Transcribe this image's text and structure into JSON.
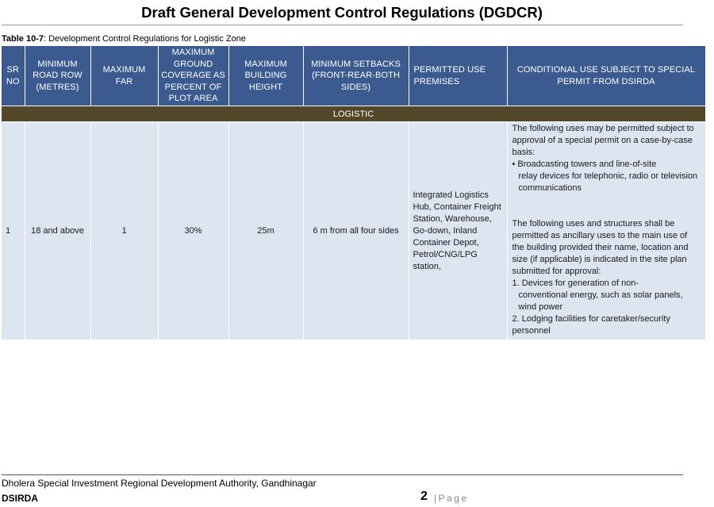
{
  "document": {
    "title": "Draft General Development Control Regulations (DGDCR)",
    "caption_label": "Table 10-7",
    "caption_text": ": Development Control Regulations for Logistic Zone"
  },
  "table": {
    "headers": {
      "sr_no": "SR NO",
      "road_row": "MINIMUM ROAD ROW (METRES)",
      "far": "MAXIMUM FAR",
      "ground_coverage": "MAXIMUM GROUND COVERAGE AS PERCENT OF PLOT AREA",
      "building_height": "MAXIMUM BUILDING HEIGHT",
      "setbacks": "MINIMUM SETBACKS (FRONT-REAR-BOTH SIDES)",
      "permitted_use": "PERMITTED USE PREMISES",
      "conditional_use": "CONDITIONAL USE SUBJECT TO SPECIAL PERMIT FROM DSIRDA"
    },
    "zone_label": "LOGISTIC",
    "rows": [
      {
        "sr_no": "1",
        "road_row": "18 and above",
        "far": "1",
        "ground_coverage": "30%",
        "building_height": "25m",
        "setbacks": "6 m from all four sides",
        "permitted_use": "Integrated Logistics Hub, Container Freight Station, Warehouse, Go-down, Inland Container Depot, Petrol/CNG/LPG station,",
        "conditional": {
          "intro_1": "The following uses may be permitted subject to approval of a special permit on a case-by-case basis:",
          "bullet_1": "• Broadcasting towers and line-of-site",
          "bullet_1_cont": "relay devices for telephonic, radio or television communications",
          "intro_2": "The following uses and structures shall be permitted as ancillary uses to the main use of the building provided their name, location and size (if applicable) is indicated in the site plan submitted for approval:",
          "item_1": "1. Devices for generation of non-",
          "item_1_cont": "conventional energy, such as solar panels, wind power",
          "item_2": "2. Lodging facilities for caretaker/security personnel"
        }
      }
    ]
  },
  "footer": {
    "authority": "Dholera Special Investment Regional Development Authority, Gandhinagar",
    "abbr": "DSIRDA",
    "page_number": "2",
    "page_word": "|Page"
  }
}
